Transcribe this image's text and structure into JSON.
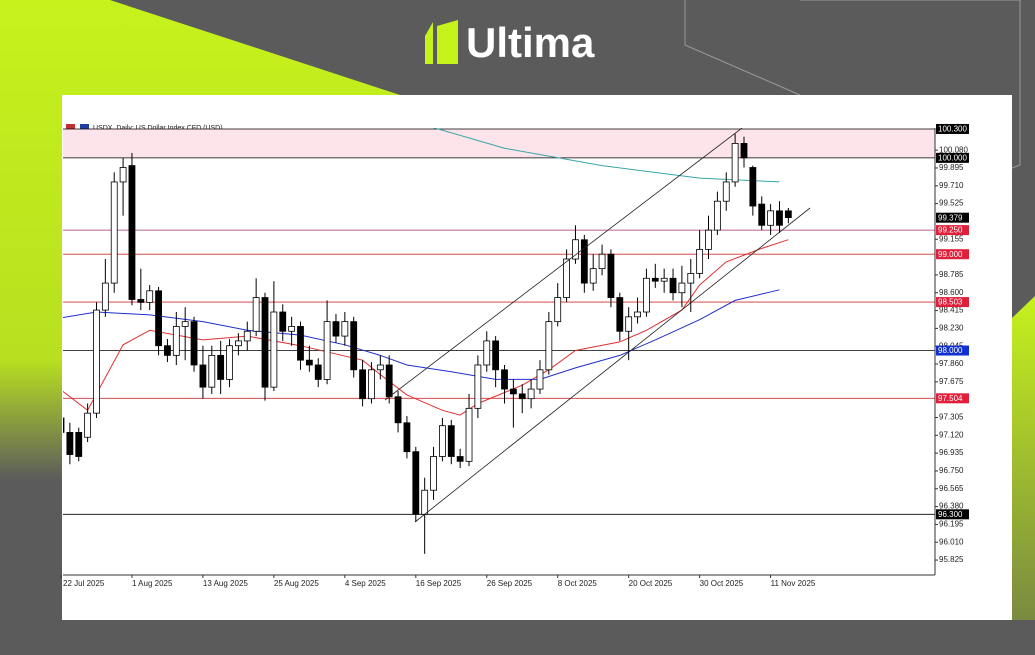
{
  "brand": "Ultima",
  "chart_data": {
    "type": "candlestick",
    "title": "USDX, Daily:  US Dollar Index CFD (USD)",
    "categories": [
      "22 Jul 2025",
      null,
      null,
      null,
      null,
      null,
      null,
      null,
      "1 Aug 2025",
      null,
      null,
      null,
      null,
      null,
      null,
      null,
      "13 Aug 2025",
      null,
      null,
      null,
      null,
      null,
      null,
      null,
      "25 Aug 2025",
      null,
      null,
      null,
      null,
      null,
      null,
      null,
      "4 Sep 2025",
      null,
      null,
      null,
      null,
      null,
      null,
      null,
      "16 Sep 2025",
      null,
      null,
      null,
      null,
      null,
      null,
      null,
      "26 Sep 2025",
      null,
      null,
      null,
      null,
      null,
      null,
      null,
      "8 Oct 2025",
      null,
      null,
      null,
      null,
      null,
      null,
      null,
      "20 Oct 2025",
      null,
      null,
      null,
      null,
      null,
      null,
      null,
      "30 Oct 2025",
      null,
      null,
      null,
      null,
      null,
      null,
      null,
      "11 Nov 2025",
      null,
      null
    ],
    "open": [
      97.3,
      97.15,
      97.15,
      97.1,
      97.35,
      98.42,
      98.7,
      99.75,
      99.92,
      98.53,
      98.5,
      98.62,
      98.05,
      97.95,
      98.25,
      98.3,
      97.85,
      97.62,
      97.95,
      97.7,
      98.05,
      98.1,
      98.2,
      98.55,
      97.62,
      98.4,
      98.2,
      98.25,
      97.9,
      97.85,
      97.7,
      98.3,
      98.15,
      98.3,
      97.8,
      97.5,
      97.8,
      97.85,
      97.52,
      97.25,
      96.95,
      96.3,
      96.55,
      96.9,
      97.22,
      96.9,
      96.85,
      97.4,
      97.85,
      98.1,
      97.8,
      97.6,
      97.55,
      97.5,
      97.6,
      97.8,
      98.3,
      98.55,
      98.95,
      99.15,
      98.7,
      98.85,
      99.0,
      98.55,
      98.2,
      98.35,
      98.4,
      98.75,
      98.72,
      98.75,
      98.6,
      98.7,
      98.8,
      99.05,
      99.25,
      99.55,
      99.75,
      100.15,
      99.9,
      99.52,
      99.3,
      99.45,
      99.45
    ],
    "high": [
      97.4,
      97.25,
      97.2,
      97.45,
      98.5,
      98.95,
      99.85,
      100.0,
      100.05,
      98.85,
      98.68,
      98.66,
      98.12,
      98.4,
      98.45,
      98.35,
      98.05,
      98.05,
      98.1,
      98.12,
      98.18,
      98.3,
      98.75,
      98.6,
      98.72,
      98.48,
      98.35,
      98.3,
      98.05,
      97.92,
      98.52,
      98.38,
      98.4,
      98.35,
      97.9,
      97.88,
      97.95,
      97.95,
      97.58,
      97.32,
      97.0,
      96.68,
      97.0,
      97.3,
      97.28,
      96.98,
      97.55,
      97.95,
      98.2,
      98.15,
      97.85,
      97.7,
      97.65,
      97.7,
      97.9,
      98.4,
      98.7,
      99.05,
      99.3,
      99.2,
      99.0,
      99.1,
      99.05,
      98.6,
      98.45,
      98.55,
      98.85,
      98.9,
      98.85,
      98.85,
      98.88,
      98.95,
      99.25,
      99.4,
      99.65,
      99.85,
      100.25,
      100.22,
      99.92,
      99.6,
      99.52,
      99.55,
      99.48
    ],
    "low": [
      97.05,
      96.82,
      96.85,
      97.05,
      97.3,
      98.35,
      98.6,
      99.4,
      98.47,
      98.42,
      98.42,
      97.95,
      97.88,
      97.85,
      97.9,
      97.78,
      97.5,
      97.55,
      97.55,
      97.62,
      97.95,
      98.0,
      98.15,
      97.48,
      97.58,
      98.1,
      98.05,
      97.8,
      97.78,
      97.62,
      97.65,
      98.08,
      98.05,
      97.72,
      97.42,
      97.45,
      97.7,
      97.45,
      97.15,
      96.88,
      96.22,
      95.89,
      96.45,
      96.85,
      96.82,
      96.78,
      96.8,
      97.3,
      97.78,
      97.62,
      97.45,
      97.2,
      97.35,
      97.4,
      97.55,
      97.75,
      98.25,
      98.5,
      98.9,
      98.6,
      98.62,
      98.78,
      98.45,
      98.1,
      97.9,
      98.28,
      98.35,
      98.65,
      98.6,
      98.52,
      98.45,
      98.4,
      98.75,
      98.95,
      99.2,
      99.45,
      99.7,
      99.9,
      99.4,
      99.25,
      99.2,
      99.22,
      99.32
    ],
    "close": [
      97.15,
      96.92,
      96.9,
      97.35,
      98.42,
      98.7,
      99.75,
      99.9,
      98.53,
      98.5,
      98.62,
      98.05,
      97.95,
      98.25,
      98.3,
      97.85,
      97.62,
      97.95,
      97.7,
      98.05,
      98.1,
      98.2,
      98.55,
      97.62,
      98.4,
      98.2,
      98.25,
      97.9,
      97.85,
      97.7,
      98.3,
      98.15,
      98.3,
      97.8,
      97.5,
      97.8,
      97.85,
      97.52,
      97.25,
      96.95,
      96.3,
      96.55,
      96.9,
      97.22,
      96.9,
      96.85,
      97.4,
      97.85,
      98.1,
      97.8,
      97.6,
      97.55,
      97.5,
      97.6,
      97.8,
      98.3,
      98.55,
      98.95,
      99.15,
      98.7,
      98.85,
      99.0,
      98.55,
      98.2,
      98.35,
      98.4,
      98.75,
      98.72,
      98.75,
      98.6,
      98.7,
      98.8,
      99.05,
      99.25,
      99.55,
      99.75,
      100.15,
      100.0,
      99.5,
      99.3,
      99.45,
      99.3,
      99.38
    ],
    "overlays": [
      {
        "color": "#e03030",
        "x": [
          0,
          3,
          7,
          10,
          16,
          21,
          27,
          34,
          36,
          39,
          43,
          45,
          47,
          52,
          55,
          58,
          63,
          66,
          70,
          72,
          75,
          79,
          82
        ],
        "values": [
          97.59,
          97.38,
          98.06,
          98.21,
          98.11,
          98.15,
          98.05,
          97.9,
          97.75,
          97.54,
          97.38,
          97.33,
          97.45,
          97.64,
          97.8,
          98.0,
          98.09,
          98.21,
          98.42,
          98.68,
          98.92,
          99.06,
          99.15
        ]
      },
      {
        "color": "#2030c8",
        "x": [
          0,
          4,
          10,
          16,
          21,
          27,
          32,
          36,
          39,
          44,
          49,
          54,
          58,
          63,
          67,
          72,
          76,
          81
        ],
        "values": [
          98.34,
          98.4,
          98.37,
          98.3,
          98.21,
          98.16,
          98.06,
          97.95,
          97.85,
          97.78,
          97.7,
          97.7,
          97.82,
          97.95,
          98.11,
          98.32,
          98.52,
          98.63
        ]
      },
      {
        "color": "#3aa6a6",
        "x": [
          41,
          50,
          61,
          72,
          81
        ],
        "values": [
          100.34,
          100.1,
          99.92,
          99.79,
          99.75
        ]
      }
    ],
    "zone": {
      "from": 100.0,
      "to": 100.3,
      "color": "#fde3ea"
    },
    "levels": [
      {
        "value": 100.3,
        "label": "100.300",
        "color": "#000000",
        "line_color": "#000000"
      },
      {
        "value": 100.0,
        "label": "100.000",
        "color": "#000000",
        "line_color": "#000000"
      },
      {
        "value": 99.379,
        "label": "99.379",
        "color": "#000000",
        "line_color": null
      },
      {
        "value": 99.25,
        "label": "99.250",
        "color": "#e0203a",
        "line_color": "#a0306a"
      },
      {
        "value": 99.0,
        "label": "99.000",
        "color": "#e0203a",
        "line_color": "#d03030"
      },
      {
        "value": 98.503,
        "label": "98.503",
        "color": "#e0203a",
        "line_color": "#d03030"
      },
      {
        "value": 98.0,
        "label": "98.000",
        "color": "#1030d0",
        "line_color": "#000000"
      },
      {
        "value": 97.504,
        "label": "97.504",
        "color": "#e0203a",
        "line_color": "#d03030"
      },
      {
        "value": 96.3,
        "label": "96.300",
        "color": "#000000",
        "line_color": "#000000"
      }
    ],
    "ylim": [
      95.67,
      100.31
    ],
    "yticks": [
      95.825,
      {
        "value": 96.01,
        "label": "96.010"
      },
      96.195,
      {
        "value": 96.38,
        "label": "96.380"
      },
      96.565,
      {
        "value": 96.75,
        "label": "96.750"
      },
      96.935,
      {
        "value": 97.12,
        "label": "97.120"
      },
      97.305,
      97.675,
      {
        "value": 97.86,
        "label": "97.860"
      },
      98.045,
      {
        "value": 98.23,
        "label": "98.230"
      },
      98.415,
      {
        "value": 98.6,
        "label": "98.600"
      },
      98.785,
      99.155,
      99.525,
      {
        "value": 99.71,
        "label": "99.710"
      },
      99.895,
      {
        "value": 100.08,
        "label": "100.080"
      }
    ],
    "up_color": "#ffffff",
    "down_color": "#000000"
  }
}
